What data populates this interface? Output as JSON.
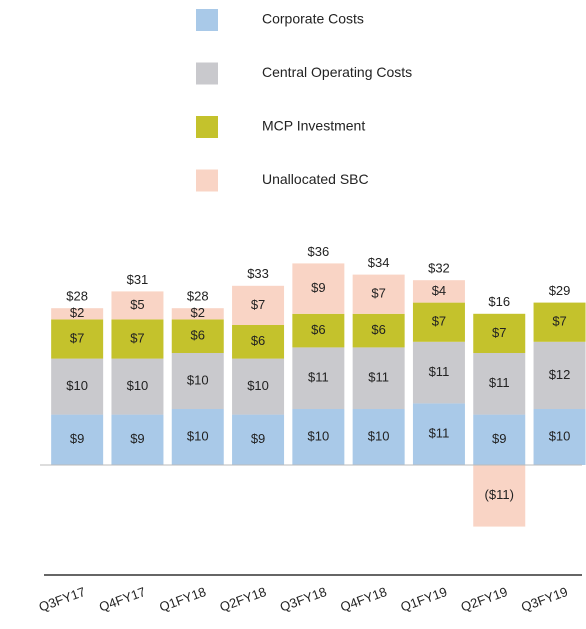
{
  "chart_data": {
    "type": "stacked_bar",
    "categories": [
      "Q3FY17",
      "Q4FY17",
      "Q1FY18",
      "Q2FY18",
      "Q3FY18",
      "Q4FY18",
      "Q1FY19",
      "Q2FY19",
      "Q3FY19"
    ],
    "series": [
      {
        "name": "Corporate Costs",
        "color": "#a9c9e8",
        "values": [
          9,
          9,
          10,
          9,
          10,
          10,
          11,
          9,
          10
        ],
        "value_labels": [
          "$9",
          "$9",
          "$10",
          "$9",
          "$10",
          "$10",
          "$11",
          "$9",
          "$10"
        ]
      },
      {
        "name": "Central Operating Costs",
        "color": "#c9c9cd",
        "values": [
          10,
          10,
          10,
          10,
          11,
          11,
          11,
          11,
          12
        ],
        "value_labels": [
          "$10",
          "$10",
          "$10",
          "$10",
          "$11",
          "$11",
          "$11",
          "$11",
          "$12"
        ]
      },
      {
        "name": "MCP Investment",
        "color": "#c4c22c",
        "values": [
          7,
          7,
          6,
          6,
          6,
          6,
          7,
          7,
          7
        ],
        "value_labels": [
          "$7",
          "$7",
          "$6",
          "$6",
          "$6",
          "$6",
          "$7",
          "$7",
          "$7"
        ]
      },
      {
        "name": "Unallocated SBC",
        "color": "#f9d4c5",
        "values": [
          2,
          5,
          2,
          7,
          9,
          7,
          4,
          -11,
          null
        ],
        "value_labels": [
          "$2",
          "$5",
          "$2",
          "$7",
          "$9",
          "$7",
          "$4",
          "($11)",
          null
        ]
      }
    ],
    "totals": [
      "$28",
      "$31",
      "$28",
      "$33",
      "$36",
      "$34",
      "$32",
      "$16",
      "$29"
    ]
  }
}
